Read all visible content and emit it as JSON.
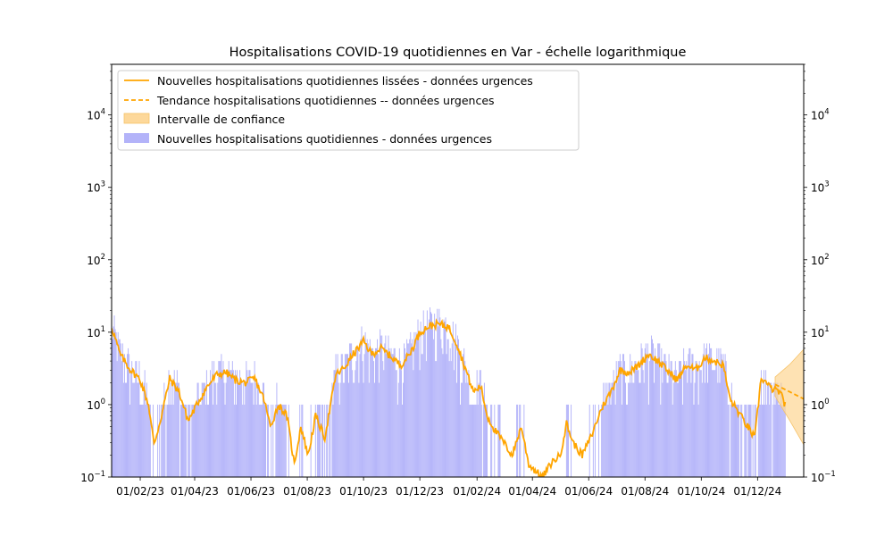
{
  "chart_data": {
    "type": "bar",
    "title": "Hospitalisations COVID-19 quotidiennes en Var - échelle logarithmique",
    "xlabel": "",
    "ylabel": "",
    "y_scale": "log",
    "ylim": [
      0.1,
      50000
    ],
    "y_ticks": [
      {
        "value": 0.1,
        "base": "10",
        "exp": "−1"
      },
      {
        "value": 1,
        "base": "10",
        "exp": "0"
      },
      {
        "value": 10,
        "base": "10",
        "exp": "1"
      },
      {
        "value": 100,
        "base": "10",
        "exp": "2"
      },
      {
        "value": 1000,
        "base": "10",
        "exp": "3"
      },
      {
        "value": 10000,
        "base": "10",
        "exp": "4"
      }
    ],
    "x_ticks": [
      "01/02/23",
      "01/04/23",
      "01/06/23",
      "01/08/23",
      "01/10/23",
      "01/12/23",
      "01/02/24",
      "01/04/24",
      "01/06/24",
      "01/08/24",
      "01/10/24",
      "01/12/24"
    ],
    "x_tick_dates": [
      "2023-02-01",
      "2023-04-01",
      "2023-06-01",
      "2023-08-01",
      "2023-10-01",
      "2023-12-01",
      "2024-02-01",
      "2024-04-01",
      "2024-06-01",
      "2024-08-01",
      "2024-10-01",
      "2024-12-01"
    ],
    "xlim": [
      "2023-01-01",
      "2025-01-20"
    ],
    "grid": false,
    "legend_placement": "top-left",
    "legend": [
      "Nouvelles hospitalisations quotidiennes lissées - données urgences",
      "Tendance hospitalisations quotidiennes -- données urgences",
      "Intervalle de confiance",
      "Nouvelles hospitalisations quotidiennes - données urgences"
    ],
    "colors": {
      "bars": "#b3b3f9",
      "smoothed": "#ffa500",
      "trend": "#ffa500",
      "confidence": "#fdd89a"
    },
    "series_smoothed": [
      {
        "date": "2023-01-01",
        "value": 12
      },
      {
        "date": "2023-01-10",
        "value": 5
      },
      {
        "date": "2023-01-20",
        "value": 3.2
      },
      {
        "date": "2023-02-01",
        "value": 2.2
      },
      {
        "date": "2023-02-10",
        "value": 1.0
      },
      {
        "date": "2023-02-16",
        "value": 0.28
      },
      {
        "date": "2023-02-24",
        "value": 0.7
      },
      {
        "date": "2023-03-05",
        "value": 2.3
      },
      {
        "date": "2023-03-15",
        "value": 1.5
      },
      {
        "date": "2023-03-25",
        "value": 0.6
      },
      {
        "date": "2023-04-05",
        "value": 1.1
      },
      {
        "date": "2023-04-15",
        "value": 1.8
      },
      {
        "date": "2023-04-25",
        "value": 2.6
      },
      {
        "date": "2023-05-05",
        "value": 2.8
      },
      {
        "date": "2023-05-15",
        "value": 2.2
      },
      {
        "date": "2023-05-25",
        "value": 2.0
      },
      {
        "date": "2023-06-05",
        "value": 2.3
      },
      {
        "date": "2023-06-15",
        "value": 1.2
      },
      {
        "date": "2023-06-22",
        "value": 0.5
      },
      {
        "date": "2023-07-01",
        "value": 1.0
      },
      {
        "date": "2023-07-10",
        "value": 0.7
      },
      {
        "date": "2023-07-18",
        "value": 0.15
      },
      {
        "date": "2023-07-25",
        "value": 0.5
      },
      {
        "date": "2023-08-02",
        "value": 0.2
      },
      {
        "date": "2023-08-10",
        "value": 0.7
      },
      {
        "date": "2023-08-20",
        "value": 0.35
      },
      {
        "date": "2023-09-01",
        "value": 2.6
      },
      {
        "date": "2023-09-10",
        "value": 3.2
      },
      {
        "date": "2023-09-20",
        "value": 5
      },
      {
        "date": "2023-10-01",
        "value": 7.5
      },
      {
        "date": "2023-10-10",
        "value": 5
      },
      {
        "date": "2023-10-20",
        "value": 6
      },
      {
        "date": "2023-11-01",
        "value": 4.5
      },
      {
        "date": "2023-11-10",
        "value": 3.5
      },
      {
        "date": "2023-11-20",
        "value": 5
      },
      {
        "date": "2023-12-01",
        "value": 10
      },
      {
        "date": "2023-12-10",
        "value": 12
      },
      {
        "date": "2023-12-20",
        "value": 13
      },
      {
        "date": "2024-01-01",
        "value": 12
      },
      {
        "date": "2024-01-10",
        "value": 7
      },
      {
        "date": "2024-01-20",
        "value": 3
      },
      {
        "date": "2024-01-28",
        "value": 1.5
      },
      {
        "date": "2024-02-05",
        "value": 1.8
      },
      {
        "date": "2024-02-12",
        "value": 0.7
      },
      {
        "date": "2024-02-20",
        "value": 0.45
      },
      {
        "date": "2024-03-01",
        "value": 0.3
      },
      {
        "date": "2024-03-10",
        "value": 0.2
      },
      {
        "date": "2024-03-20",
        "value": 0.5
      },
      {
        "date": "2024-03-28",
        "value": 0.15
      },
      {
        "date": "2024-04-05",
        "value": 0.12
      },
      {
        "date": "2024-04-12",
        "value": 0.1
      },
      {
        "date": "2024-04-22",
        "value": 0.16
      },
      {
        "date": "2024-05-01",
        "value": 0.2
      },
      {
        "date": "2024-05-08",
        "value": 0.55
      },
      {
        "date": "2024-05-15",
        "value": 0.3
      },
      {
        "date": "2024-05-25",
        "value": 0.2
      },
      {
        "date": "2024-06-05",
        "value": 0.4
      },
      {
        "date": "2024-06-15",
        "value": 0.9
      },
      {
        "date": "2024-06-25",
        "value": 1.5
      },
      {
        "date": "2024-07-05",
        "value": 3
      },
      {
        "date": "2024-07-15",
        "value": 2.8
      },
      {
        "date": "2024-07-25",
        "value": 3.5
      },
      {
        "date": "2024-08-05",
        "value": 5
      },
      {
        "date": "2024-08-15",
        "value": 4
      },
      {
        "date": "2024-08-25",
        "value": 3
      },
      {
        "date": "2024-09-05",
        "value": 2.2
      },
      {
        "date": "2024-09-15",
        "value": 3.5
      },
      {
        "date": "2024-09-25",
        "value": 3
      },
      {
        "date": "2024-10-05",
        "value": 4.5
      },
      {
        "date": "2024-10-15",
        "value": 4
      },
      {
        "date": "2024-10-25",
        "value": 3.5
      },
      {
        "date": "2024-11-01",
        "value": 1.2
      },
      {
        "date": "2024-11-10",
        "value": 0.8
      },
      {
        "date": "2024-11-20",
        "value": 0.5
      },
      {
        "date": "2024-11-28",
        "value": 0.35
      },
      {
        "date": "2024-12-05",
        "value": 2.4
      },
      {
        "date": "2024-12-15",
        "value": 1.7
      },
      {
        "date": "2024-12-25",
        "value": 1.5
      },
      {
        "date": "2024-12-31",
        "value": 1.0
      }
    ],
    "series_trend": [
      {
        "date": "2024-12-20",
        "value": 1.9
      },
      {
        "date": "2025-01-20",
        "value": 1.2
      }
    ],
    "confidence_interval": {
      "dates": [
        "2024-12-20",
        "2025-01-05",
        "2025-01-20"
      ],
      "lower": [
        1.3,
        0.6,
        0.28
      ],
      "upper": [
        2.4,
        3.6,
        5.8
      ]
    }
  }
}
